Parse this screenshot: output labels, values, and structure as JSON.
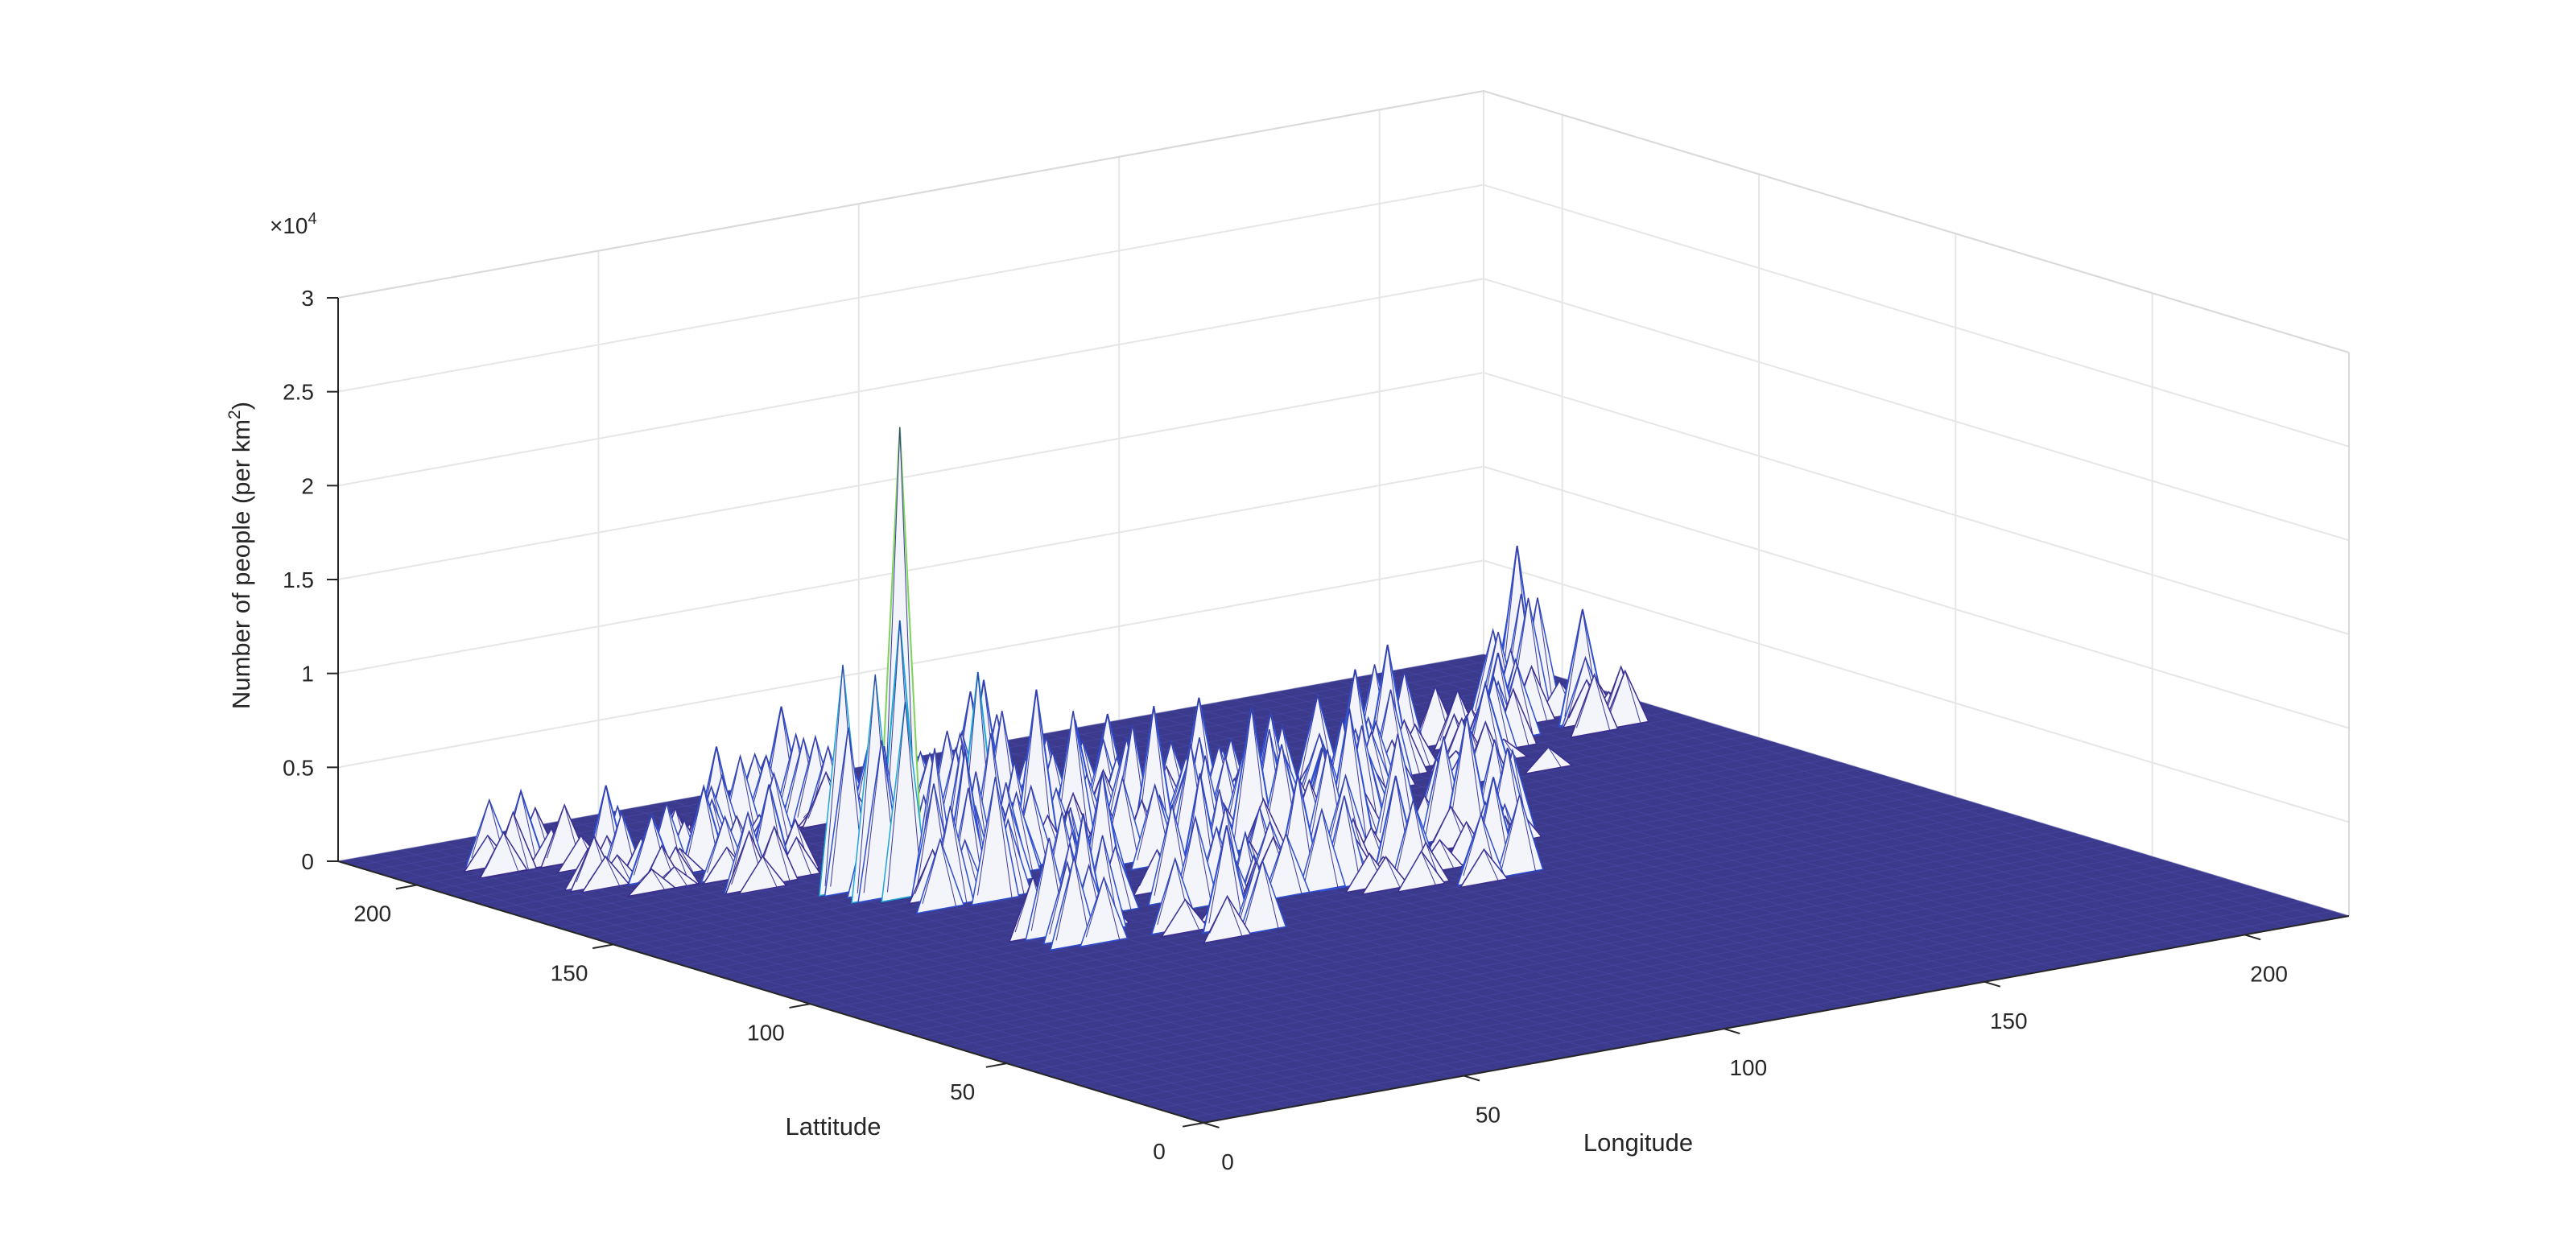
{
  "chart_data": {
    "type": "surface",
    "xlabel": "Longitude",
    "ylabel": "Lattitude",
    "zlabel_main": "Number of people (per km",
    "zlabel_sup": "2",
    "zlabel_tail": ")",
    "z_exponent_prefix": "×10",
    "z_exponent_power": "4",
    "xlim": [
      0,
      220
    ],
    "ylim": [
      0,
      220
    ],
    "zlim": [
      0,
      30000
    ],
    "xticks": [
      0,
      50,
      100,
      150,
      200
    ],
    "yticks": [
      0,
      50,
      100,
      150,
      200
    ],
    "zticks": [
      0,
      5000,
      10000,
      15000,
      20000,
      25000,
      30000
    ],
    "xtick_labels": [
      "0",
      "50",
      "100",
      "150",
      "200"
    ],
    "ytick_labels": [
      "0",
      "50",
      "100",
      "150",
      "200"
    ],
    "ztick_labels": [
      "0",
      "0.5",
      "1",
      "1.5",
      "2",
      "2.5",
      "3"
    ],
    "grid": true,
    "colormap": [
      "#3b2d8f",
      "#2e4fd1",
      "#1aa6d8",
      "#45c08a",
      "#7fd35a"
    ],
    "floor_color": "#3b3a8c",
    "peaks": [
      {
        "x": 55,
        "y": 150,
        "z": 24800
      },
      {
        "x": 55,
        "y": 150,
        "z": 14500
      },
      {
        "x": 70,
        "y": 150,
        "z": 11000
      },
      {
        "x": 60,
        "y": 140,
        "z": 8000
      },
      {
        "x": 90,
        "y": 175,
        "z": 8000
      },
      {
        "x": 95,
        "y": 185,
        "z": 6500
      },
      {
        "x": 100,
        "y": 165,
        "z": 6000
      },
      {
        "x": 110,
        "y": 170,
        "z": 5500
      },
      {
        "x": 120,
        "y": 160,
        "z": 6500
      },
      {
        "x": 130,
        "y": 155,
        "z": 5500
      },
      {
        "x": 140,
        "y": 150,
        "z": 5000
      },
      {
        "x": 150,
        "y": 160,
        "z": 6500
      },
      {
        "x": 160,
        "y": 165,
        "z": 7000
      },
      {
        "x": 200,
        "y": 185,
        "z": 9000
      },
      {
        "x": 205,
        "y": 175,
        "z": 6000
      },
      {
        "x": 185,
        "y": 170,
        "z": 5000
      },
      {
        "x": 175,
        "y": 160,
        "z": 4500
      },
      {
        "x": 20,
        "y": 200,
        "z": 4000
      },
      {
        "x": 25,
        "y": 185,
        "z": 5000
      },
      {
        "x": 30,
        "y": 180,
        "z": 3500
      },
      {
        "x": 40,
        "y": 180,
        "z": 4500
      },
      {
        "x": 45,
        "y": 170,
        "z": 5000
      },
      {
        "x": 50,
        "y": 190,
        "z": 5500
      },
      {
        "x": 70,
        "y": 200,
        "z": 6000
      },
      {
        "x": 80,
        "y": 190,
        "z": 5000
      },
      {
        "x": 85,
        "y": 155,
        "z": 9000
      },
      {
        "x": 100,
        "y": 145,
        "z": 8000
      },
      {
        "x": 115,
        "y": 140,
        "z": 7500
      },
      {
        "x": 130,
        "y": 135,
        "z": 7000
      },
      {
        "x": 145,
        "y": 125,
        "z": 6500
      },
      {
        "x": 75,
        "y": 125,
        "z": 7000
      },
      {
        "x": 90,
        "y": 120,
        "z": 6500
      },
      {
        "x": 105,
        "y": 115,
        "z": 6000
      },
      {
        "x": 120,
        "y": 110,
        "z": 5500
      },
      {
        "x": 135,
        "y": 105,
        "z": 5000
      },
      {
        "x": 60,
        "y": 110,
        "z": 6500
      },
      {
        "x": 80,
        "y": 100,
        "z": 5500
      }
    ]
  }
}
